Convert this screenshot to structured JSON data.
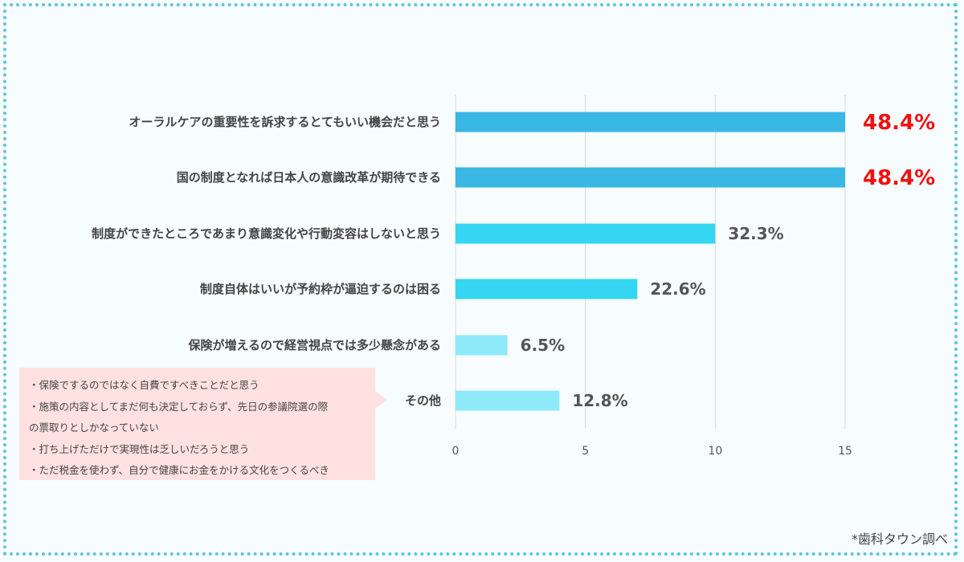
{
  "chart_data": {
    "type": "bar",
    "orientation": "horizontal",
    "categories": [
      "オーラルケアの重要性を訴求するとてもいい機会だと思う",
      "国の制度となれば日本人の意識改革が期待できる",
      "制度ができたところであまり意識変化や行動変容はしないと思う",
      "制度自体はいいが予約枠が逼迫するのは困る",
      "保険が増えるので経営視点では多少懸念がある",
      "その他"
    ],
    "values": [
      15,
      15,
      10,
      7,
      2,
      4
    ],
    "value_labels": [
      "48.4%",
      "48.4%",
      "32.3%",
      "22.6%",
      "6.5%",
      "12.8%"
    ],
    "highlight": [
      true,
      true,
      false,
      false,
      false,
      false
    ],
    "bar_colors": [
      "#38b6e4",
      "#38b6e4",
      "#35d6f2",
      "#35d6f2",
      "#8eeaf8",
      "#8eeaf8"
    ],
    "xlim": [
      0,
      15
    ],
    "xticks": [
      "0",
      "5",
      "10",
      "15"
    ],
    "grid": true,
    "title": "",
    "xlabel": "",
    "ylabel": ""
  },
  "note": {
    "lines": [
      "・保険でするのではなく自費ですべきことだと思う",
      "・施策の内容としてまだ何も決定しておらず、先日の参議院選の際",
      "の票取りとしかなっていない",
      "・打ち上げただけで実現性は乏しいだろうと思う",
      "・ただ税金を使わず、自分で健康にお金をかける文化をつくるべき"
    ]
  },
  "source": "*歯科タウン調べ",
  "colors": {
    "highlight_text": "#ee1111",
    "border": "#5cc6dc",
    "note_bg": "#ffe1e1"
  }
}
